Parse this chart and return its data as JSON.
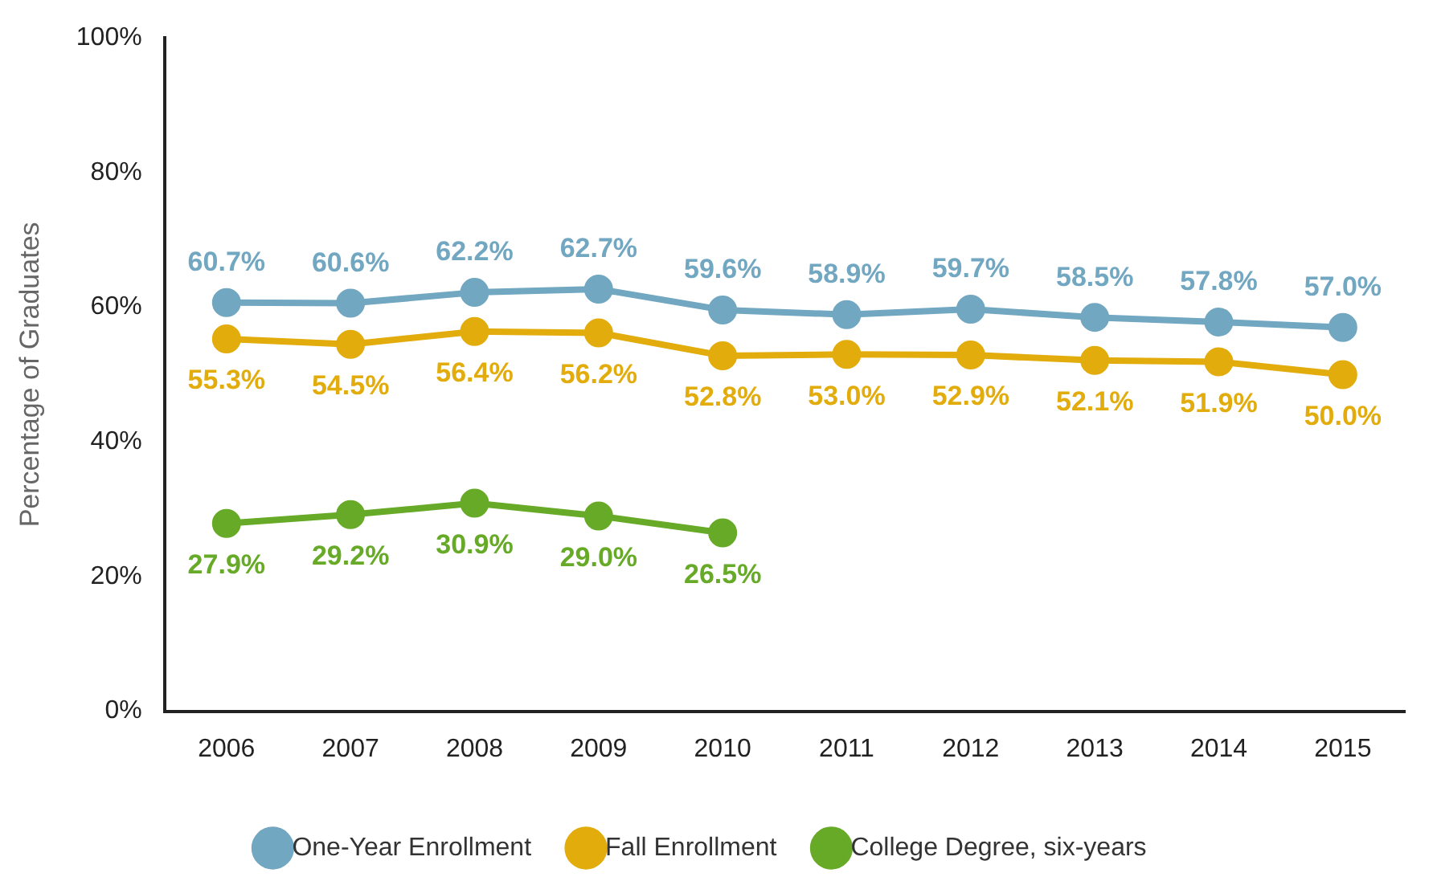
{
  "chart_data": {
    "type": "line",
    "ylabel": "Percentage of Graduates",
    "categories": [
      "2006",
      "2007",
      "2008",
      "2009",
      "2010",
      "2011",
      "2012",
      "2013",
      "2014",
      "2015"
    ],
    "series": [
      {
        "name": "One-Year Enrollment",
        "color": "#72a7c2",
        "values": [
          60.7,
          60.6,
          62.2,
          62.7,
          59.6,
          58.9,
          59.7,
          58.5,
          57.8,
          57.0
        ],
        "value_labels": [
          "60.7%",
          "60.6%",
          "62.2%",
          "62.7%",
          "59.6%",
          "58.9%",
          "59.7%",
          "58.5%",
          "57.8%",
          "57.0%"
        ]
      },
      {
        "name": "Fall Enrollment",
        "color": "#e2ac0c",
        "values": [
          55.3,
          54.5,
          56.4,
          56.2,
          52.8,
          53.0,
          52.9,
          52.1,
          51.9,
          50.0
        ],
        "value_labels": [
          "55.3%",
          "54.5%",
          "56.4%",
          "56.2%",
          "52.8%",
          "53.0%",
          "52.9%",
          "52.1%",
          "51.9%",
          "50.0%"
        ]
      },
      {
        "name": "College Degree, six-years",
        "color": "#66aa27",
        "values": [
          27.9,
          29.2,
          30.9,
          29.0,
          26.5,
          null,
          null,
          null,
          null,
          null
        ],
        "value_labels": [
          "27.9%",
          "29.2%",
          "30.9%",
          "29.0%",
          "26.5%",
          null,
          null,
          null,
          null,
          null
        ]
      }
    ],
    "ylim": [
      0,
      100
    ],
    "yticks": [
      {
        "value": 0,
        "label": "0%"
      },
      {
        "value": 20,
        "label": "20%"
      },
      {
        "value": 40,
        "label": "40%"
      },
      {
        "value": 60,
        "label": "60%"
      },
      {
        "value": 80,
        "label": "80%"
      },
      {
        "value": 100,
        "label": "100%"
      }
    ],
    "grid": false,
    "legend": "bottom",
    "marker": "circle",
    "line_style": "solid"
  }
}
